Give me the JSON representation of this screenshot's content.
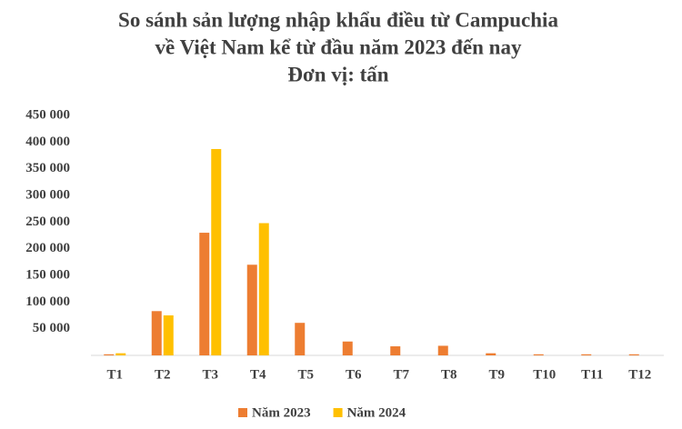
{
  "chart_data": {
    "type": "bar",
    "title_lines": [
      "So sánh sản lượng nhập khẩu điều từ Campuchia",
      "về Việt Nam kể từ đầu năm 2023 đến nay",
      "Đơn vị: tấn"
    ],
    "categories": [
      "T1",
      "T2",
      "T3",
      "T4",
      "T5",
      "T6",
      "T7",
      "T8",
      "T9",
      "T10",
      "T11",
      "T12"
    ],
    "series": [
      {
        "name": "Năm 2023",
        "color": "#ED7D31",
        "values": [
          2000,
          83000,
          230000,
          170000,
          61000,
          26000,
          17000,
          18000,
          4000,
          2000,
          2000,
          2000
        ]
      },
      {
        "name": "Năm 2024",
        "color": "#FFC000",
        "values": [
          4000,
          75000,
          387000,
          248000,
          null,
          null,
          null,
          null,
          null,
          null,
          null,
          null
        ]
      }
    ],
    "ylim": [
      0,
      450000
    ],
    "yticks": [
      {
        "value": 50000,
        "label": "50 000"
      },
      {
        "value": 100000,
        "label": "100 000"
      },
      {
        "value": 150000,
        "label": "150 000"
      },
      {
        "value": 200000,
        "label": "200 000"
      },
      {
        "value": 250000,
        "label": "250 000"
      },
      {
        "value": 300000,
        "label": "300 000"
      },
      {
        "value": 350000,
        "label": "350 000"
      },
      {
        "value": 400000,
        "label": "400 000"
      },
      {
        "value": 450000,
        "label": "450 000"
      }
    ],
    "grid": false,
    "legend": "bottom"
  }
}
